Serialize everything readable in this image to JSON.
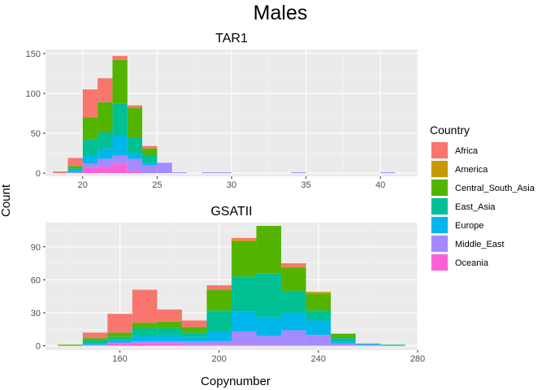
{
  "page_title": "Males",
  "xlabel": "Copynumber",
  "ylabel": "Count",
  "legend": {
    "title": "Country",
    "position": "right",
    "items": [
      {
        "name": "Africa",
        "color": "#F8766D"
      },
      {
        "name": "America",
        "color": "#C49A00"
      },
      {
        "name": "Central_South_Asia",
        "color": "#53B400"
      },
      {
        "name": "East_Asia",
        "color": "#00C094"
      },
      {
        "name": "Europe",
        "color": "#00B6EB"
      },
      {
        "name": "Middle_East",
        "color": "#A58AFF"
      },
      {
        "name": "Oceania",
        "color": "#FB61D7"
      }
    ]
  },
  "chart_data": [
    {
      "type": "bar",
      "stacked": true,
      "title": "TAR1",
      "xlim": [
        17.5,
        42.5
      ],
      "ylim": [
        -4,
        155
      ],
      "xticks": [
        20,
        25,
        30,
        35,
        40
      ],
      "yticks": [
        0,
        50,
        100,
        150
      ],
      "bin_width": 1,
      "grid": true,
      "bins": [
        {
          "x0": 18,
          "x1": 19,
          "values": [
            2,
            0,
            0,
            0,
            0,
            0,
            0
          ]
        },
        {
          "x0": 19,
          "x1": 20,
          "values": [
            10,
            0,
            3,
            2,
            3,
            1,
            0
          ]
        },
        {
          "x0": 20,
          "x1": 21,
          "values": [
            35,
            0,
            28,
            20,
            10,
            5,
            7
          ]
        },
        {
          "x0": 21,
          "x1": 22,
          "values": [
            30,
            0,
            38,
            20,
            13,
            10,
            8
          ]
        },
        {
          "x0": 22,
          "x1": 23,
          "values": [
            5,
            0,
            55,
            40,
            25,
            10,
            12
          ]
        },
        {
          "x0": 23,
          "x1": 24,
          "values": [
            3,
            0,
            37,
            20,
            7,
            15,
            3
          ]
        },
        {
          "x0": 24,
          "x1": 25,
          "values": [
            3,
            0,
            8,
            10,
            3,
            10,
            0
          ]
        },
        {
          "x0": 25,
          "x1": 26,
          "values": [
            0,
            0,
            0,
            0,
            0,
            13,
            0
          ]
        },
        {
          "x0": 26,
          "x1": 27,
          "values": [
            0,
            0,
            0,
            0,
            0,
            1,
            0
          ]
        },
        {
          "x0": 28,
          "x1": 29,
          "values": [
            0,
            0,
            0,
            0,
            0,
            1,
            0
          ]
        },
        {
          "x0": 29,
          "x1": 30,
          "values": [
            0,
            0,
            0,
            0,
            0,
            1,
            0
          ]
        },
        {
          "x0": 34,
          "x1": 35,
          "values": [
            0,
            0,
            0,
            0,
            0,
            1,
            0
          ]
        },
        {
          "x0": 40,
          "x1": 41,
          "values": [
            0,
            0,
            0,
            0,
            0,
            1,
            0
          ]
        }
      ]
    },
    {
      "type": "bar",
      "stacked": true,
      "title": "GSATII",
      "xlim": [
        130,
        280
      ],
      "ylim": [
        -4,
        112
      ],
      "xticks": [
        160,
        200,
        240,
        280
      ],
      "yticks": [
        0,
        30,
        60,
        90
      ],
      "bin_width": 10,
      "grid": true,
      "bins": [
        {
          "x0": 135,
          "x1": 145,
          "values": [
            0,
            0,
            1,
            0,
            0,
            0,
            0
          ]
        },
        {
          "x0": 145,
          "x1": 155,
          "values": [
            5,
            0,
            2,
            3,
            1,
            1,
            0
          ]
        },
        {
          "x0": 155,
          "x1": 165,
          "values": [
            17,
            0,
            4,
            3,
            2,
            1,
            2
          ]
        },
        {
          "x0": 165,
          "x1": 175,
          "values": [
            30,
            0,
            5,
            7,
            5,
            2,
            2
          ]
        },
        {
          "x0": 175,
          "x1": 185,
          "values": [
            11,
            0,
            6,
            6,
            6,
            2,
            2
          ]
        },
        {
          "x0": 185,
          "x1": 195,
          "values": [
            6,
            0,
            5,
            4,
            4,
            3,
            1
          ]
        },
        {
          "x0": 195,
          "x1": 205,
          "values": [
            4,
            0,
            19,
            19,
            9,
            3,
            1
          ]
        },
        {
          "x0": 205,
          "x1": 215,
          "values": [
            2,
            1,
            32,
            32,
            18,
            12,
            1
          ]
        },
        {
          "x0": 215,
          "x1": 225,
          "values": [
            0,
            0,
            43,
            40,
            17,
            9,
            0
          ]
        },
        {
          "x0": 225,
          "x1": 235,
          "values": [
            3,
            1,
            21,
            20,
            16,
            14,
            0
          ]
        },
        {
          "x0": 235,
          "x1": 245,
          "values": [
            0,
            2,
            15,
            9,
            13,
            10,
            0
          ]
        },
        {
          "x0": 245,
          "x1": 255,
          "values": [
            0,
            0,
            4,
            3,
            2,
            2,
            0
          ]
        },
        {
          "x0": 255,
          "x1": 265,
          "values": [
            0,
            0,
            0,
            0,
            1,
            1,
            0
          ]
        },
        {
          "x0": 265,
          "x1": 275,
          "values": [
            0,
            0,
            0,
            1,
            0,
            0,
            0
          ]
        }
      ]
    }
  ]
}
